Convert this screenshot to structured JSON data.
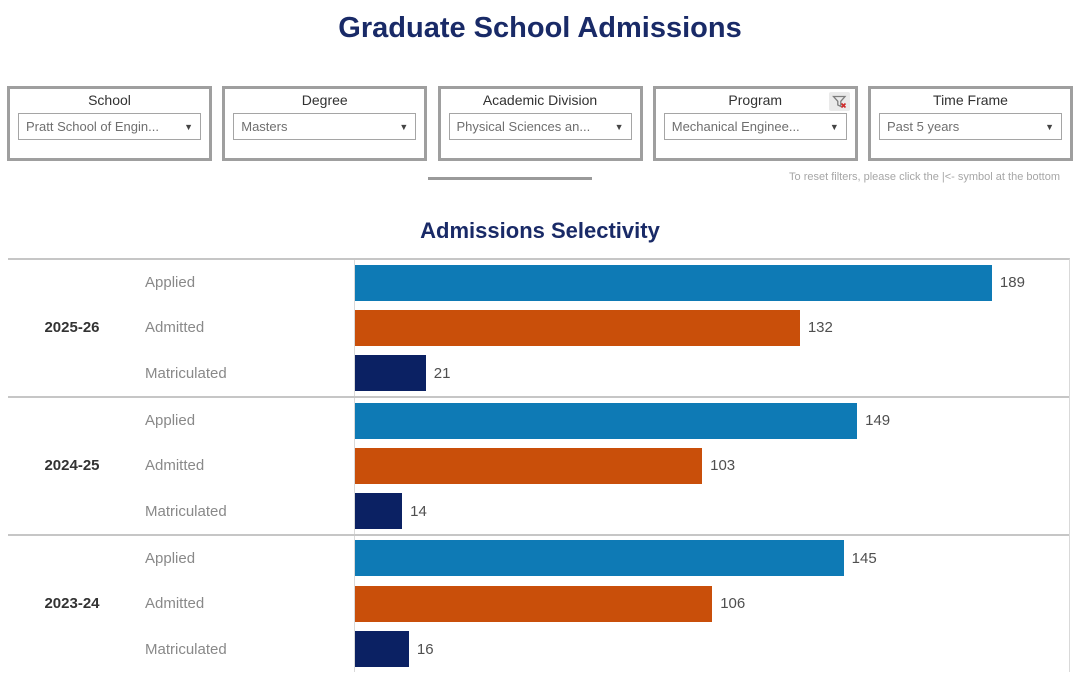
{
  "page": {
    "title": "Graduate School Admissions"
  },
  "filters": [
    {
      "label": "School",
      "value": "Pratt School of Engin..."
    },
    {
      "label": "Degree",
      "value": "Masters"
    },
    {
      "label": "Academic Division",
      "value": "Physical Sciences an..."
    },
    {
      "label": "Program",
      "value": "Mechanical Enginee...",
      "has_clear_icon": true
    },
    {
      "label": "Time Frame",
      "value": "Past 5 years"
    }
  ],
  "reset_hint": "To reset filters, please click the |<- symbol at the bottom",
  "icons": {
    "dropdown_caret": "▼",
    "filter_clear": "funnel-with-red-x",
    "filter_clear_x": "x"
  },
  "chart_data": {
    "type": "bar",
    "orientation": "horizontal",
    "title": "Admissions Selectivity",
    "categories": [
      "Applied",
      "Admitted",
      "Matriculated"
    ],
    "series_colors": [
      "#0e7ab5",
      "#c94f0a",
      "#0b2163"
    ],
    "groups": [
      {
        "year": "2025-26",
        "values": [
          189,
          132,
          21
        ]
      },
      {
        "year": "2024-25",
        "values": [
          149,
          103,
          14
        ]
      },
      {
        "year": "2023-24",
        "values": [
          145,
          106,
          16
        ]
      }
    ],
    "xlim": [
      0,
      200
    ],
    "grid": false,
    "legend": "none",
    "value_labels": true
  }
}
